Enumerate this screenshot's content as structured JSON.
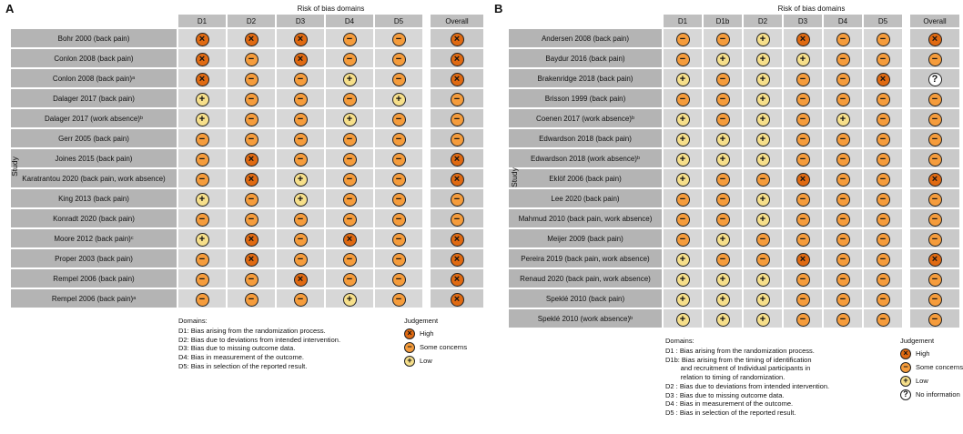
{
  "judgement_colors": {
    "high": "#e06a12",
    "some": "#f59c3c",
    "low": "#f6df8a",
    "none": "#ffffff"
  },
  "judgement_symbols": {
    "high": "×",
    "some": "−",
    "low": "+",
    "none": "?"
  },
  "chart_data": [
    {
      "type": "table",
      "id": "A",
      "panel_label": "A",
      "header_title": "Risk of bias domains",
      "axis_label": "Study",
      "columns": [
        "D1",
        "D2",
        "D3",
        "D4",
        "D5"
      ],
      "overall_label": "Overall",
      "rows": [
        {
          "study": "Bohr 2000 (back pain)",
          "judgements": [
            "high",
            "high",
            "high",
            "some",
            "some"
          ],
          "overall": "high"
        },
        {
          "study": "Conlon 2008 (back pain)",
          "judgements": [
            "high",
            "some",
            "high",
            "some",
            "some"
          ],
          "overall": "high"
        },
        {
          "study": "Conlon 2008 (back pain)ᵃ",
          "judgements": [
            "high",
            "some",
            "some",
            "low",
            "some"
          ],
          "overall": "high"
        },
        {
          "study": "Dalager 2017 (back pain)",
          "judgements": [
            "low",
            "some",
            "some",
            "some",
            "low"
          ],
          "overall": "some"
        },
        {
          "study": "Dalager 2017 (work absence)ᵇ",
          "judgements": [
            "low",
            "some",
            "some",
            "low",
            "some"
          ],
          "overall": "some"
        },
        {
          "study": "Gerr 2005 (back pain)",
          "judgements": [
            "some",
            "some",
            "some",
            "some",
            "some"
          ],
          "overall": "some"
        },
        {
          "study": "Joines 2015 (back pain)",
          "judgements": [
            "some",
            "high",
            "some",
            "some",
            "some"
          ],
          "overall": "high"
        },
        {
          "study": "Karatrantou 2020 (back pain, work absence)",
          "judgements": [
            "some",
            "high",
            "low",
            "some",
            "some"
          ],
          "overall": "high"
        },
        {
          "study": "King 2013 (back pain)",
          "judgements": [
            "low",
            "some",
            "low",
            "some",
            "some"
          ],
          "overall": "some"
        },
        {
          "study": "Konradt 2020 (back pain)",
          "judgements": [
            "some",
            "some",
            "some",
            "some",
            "some"
          ],
          "overall": "some"
        },
        {
          "study": "Moore 2012 (back pain)ᶜ",
          "judgements": [
            "low",
            "high",
            "some",
            "high",
            "some"
          ],
          "overall": "high"
        },
        {
          "study": "Proper 2003 (back pain)",
          "judgements": [
            "some",
            "high",
            "some",
            "some",
            "some"
          ],
          "overall": "high"
        },
        {
          "study": "Rempel 2006 (back pain)",
          "judgements": [
            "some",
            "some",
            "high",
            "some",
            "some"
          ],
          "overall": "high"
        },
        {
          "study": "Rempel 2006 (back pain)ᵃ",
          "judgements": [
            "some",
            "some",
            "some",
            "low",
            "some"
          ],
          "overall": "high"
        }
      ],
      "legend": {
        "domains_title": "Domains:",
        "domains": [
          "D1: Bias arising from the randomization process.",
          "D2: Bias due to deviations from intended intervention.",
          "D3: Bias due to missing outcome data.",
          "D4: Bias in measurement of the outcome.",
          "D5: Bias in selection of the reported result."
        ],
        "judgement_title": "Judgement",
        "judgements": [
          {
            "key": "high",
            "label": "High"
          },
          {
            "key": "some",
            "label": "Some concerns"
          },
          {
            "key": "low",
            "label": "Low"
          }
        ]
      }
    },
    {
      "type": "table",
      "id": "B",
      "panel_label": "B",
      "header_title": "Risk of bias domains",
      "axis_label": "Study",
      "columns": [
        "D1",
        "D1b",
        "D2",
        "D3",
        "D4",
        "D5"
      ],
      "overall_label": "Overall",
      "rows": [
        {
          "study": "Andersen 2008 (back pain)",
          "judgements": [
            "some",
            "some",
            "low",
            "high",
            "some",
            "some"
          ],
          "overall": "high"
        },
        {
          "study": "Baydur 2016 (back pain)",
          "judgements": [
            "some",
            "low",
            "low",
            "low",
            "some",
            "some"
          ],
          "overall": "some"
        },
        {
          "study": "Brakenridge 2018 (back pain)",
          "judgements": [
            "low",
            "some",
            "low",
            "some",
            "some",
            "high"
          ],
          "overall": "none"
        },
        {
          "study": "Brisson 1999 (back pain)",
          "judgements": [
            "some",
            "some",
            "low",
            "some",
            "some",
            "some"
          ],
          "overall": "some"
        },
        {
          "study": "Coenen 2017 (work absence)ᵇ",
          "judgements": [
            "low",
            "some",
            "low",
            "some",
            "low",
            "some"
          ],
          "overall": "some"
        },
        {
          "study": "Edwardson 2018 (back pain)",
          "judgements": [
            "low",
            "low",
            "low",
            "some",
            "some",
            "some"
          ],
          "overall": "some"
        },
        {
          "study": "Edwardson 2018 (work absence)ᵇ",
          "judgements": [
            "low",
            "low",
            "low",
            "some",
            "some",
            "some"
          ],
          "overall": "some"
        },
        {
          "study": "Eklöf 2006 (back pain)",
          "judgements": [
            "low",
            "some",
            "some",
            "high",
            "some",
            "some"
          ],
          "overall": "high"
        },
        {
          "study": "Lee 2020 (back pain)",
          "judgements": [
            "some",
            "some",
            "low",
            "some",
            "some",
            "some"
          ],
          "overall": "some"
        },
        {
          "study": "Mahmud 2010 (back pain, work absence)",
          "judgements": [
            "some",
            "some",
            "low",
            "some",
            "some",
            "some"
          ],
          "overall": "some"
        },
        {
          "study": "Meijer 2009 (back pain)",
          "judgements": [
            "some",
            "low",
            "some",
            "some",
            "some",
            "some"
          ],
          "overall": "some"
        },
        {
          "study": "Pereira 2019 (back pain, work absence)",
          "judgements": [
            "low",
            "some",
            "some",
            "high",
            "some",
            "some"
          ],
          "overall": "high"
        },
        {
          "study": "Renaud 2020 (back pain, work absence)",
          "judgements": [
            "low",
            "low",
            "low",
            "some",
            "some",
            "some"
          ],
          "overall": "some"
        },
        {
          "study": "Speklé 2010 (back pain)",
          "judgements": [
            "low",
            "low",
            "low",
            "some",
            "some",
            "some"
          ],
          "overall": "some"
        },
        {
          "study": "Speklé 2010 (work absence)ᵇ",
          "judgements": [
            "low",
            "low",
            "low",
            "some",
            "some",
            "some"
          ],
          "overall": "some"
        }
      ],
      "legend": {
        "domains_title": "Domains:",
        "domains": [
          "D1 : Bias arising from the randomization process.",
          "D1b: Bias arising from the timing of identification",
          "        and recruitment of Individual participants in",
          "        relation to timing of randomization.",
          "D2 : Bias due to deviations from intended intervention.",
          "D3 : Bias due to missing outcome data.",
          "D4 : Bias in measurement of the outcome.",
          "D5 : Bias in selection of the reported result."
        ],
        "judgement_title": "Judgement",
        "judgements": [
          {
            "key": "high",
            "label": "High"
          },
          {
            "key": "some",
            "label": "Some concerns"
          },
          {
            "key": "low",
            "label": "Low"
          },
          {
            "key": "none",
            "label": "No information"
          }
        ]
      }
    }
  ]
}
